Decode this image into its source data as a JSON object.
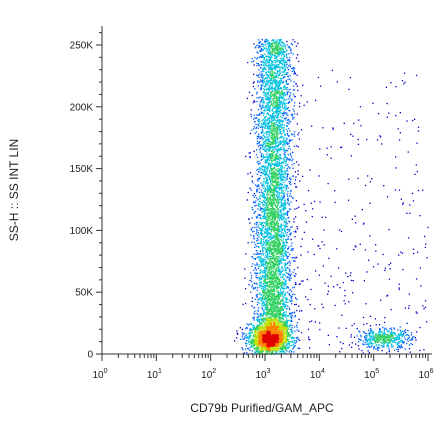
{
  "chart_data": {
    "type": "scatter",
    "subtype": "flow-cytometry-density-dot-plot",
    "title": "",
    "xlabel": "CD79b Purified/GAM_APC",
    "ylabel": "SS-H :: SS INT LIN",
    "x_scale": "log",
    "y_scale": "linear",
    "xlim": [
      1,
      1000000
    ],
    "ylim": [
      0,
      262144
    ],
    "x_tick_labels": [
      {
        "base": "10",
        "exp": "0",
        "value": 1
      },
      {
        "base": "10",
        "exp": "1",
        "value": 10
      },
      {
        "base": "10",
        "exp": "2",
        "value": 100
      },
      {
        "base": "10",
        "exp": "3",
        "value": 1000
      },
      {
        "base": "10",
        "exp": "4",
        "value": 10000
      },
      {
        "base": "10",
        "exp": "5",
        "value": 100000
      },
      {
        "base": "10",
        "exp": "6",
        "value": 1000000
      }
    ],
    "y_tick_labels": [
      {
        "label": "0",
        "value": 0
      },
      {
        "label": "50K",
        "value": 50000
      },
      {
        "label": "100K",
        "value": 100000
      },
      {
        "label": "150K",
        "value": 150000
      },
      {
        "label": "200K",
        "value": 200000
      },
      {
        "label": "250K",
        "value": 250000
      }
    ],
    "grid": false,
    "legend": "none",
    "density_colors": [
      "#0000c8",
      "#0060ff",
      "#00c0e0",
      "#30d060",
      "#c0e000",
      "#ff8000",
      "#e00000"
    ],
    "populations": [
      {
        "x_center": 1200,
        "x_spread_log10": 0.2,
        "y_center": 12000,
        "y_spread": 6000,
        "points": 1700,
        "peak_density": "red"
      },
      {
        "x_center": 1400,
        "x_spread_log10": 0.17,
        "y_range": [
          20000,
          255000
        ],
        "points": 5200,
        "peak_density": "green"
      },
      {
        "x_center": 150000,
        "x_spread_log10": 0.25,
        "y_center": 13000,
        "y_spread": 4000,
        "points": 450,
        "peak_density": "cyan"
      },
      {
        "x_range": [
          3000,
          1000000
        ],
        "y_range": [
          0,
          230000
        ],
        "points": 280,
        "peak_density": "blue"
      }
    ]
  }
}
